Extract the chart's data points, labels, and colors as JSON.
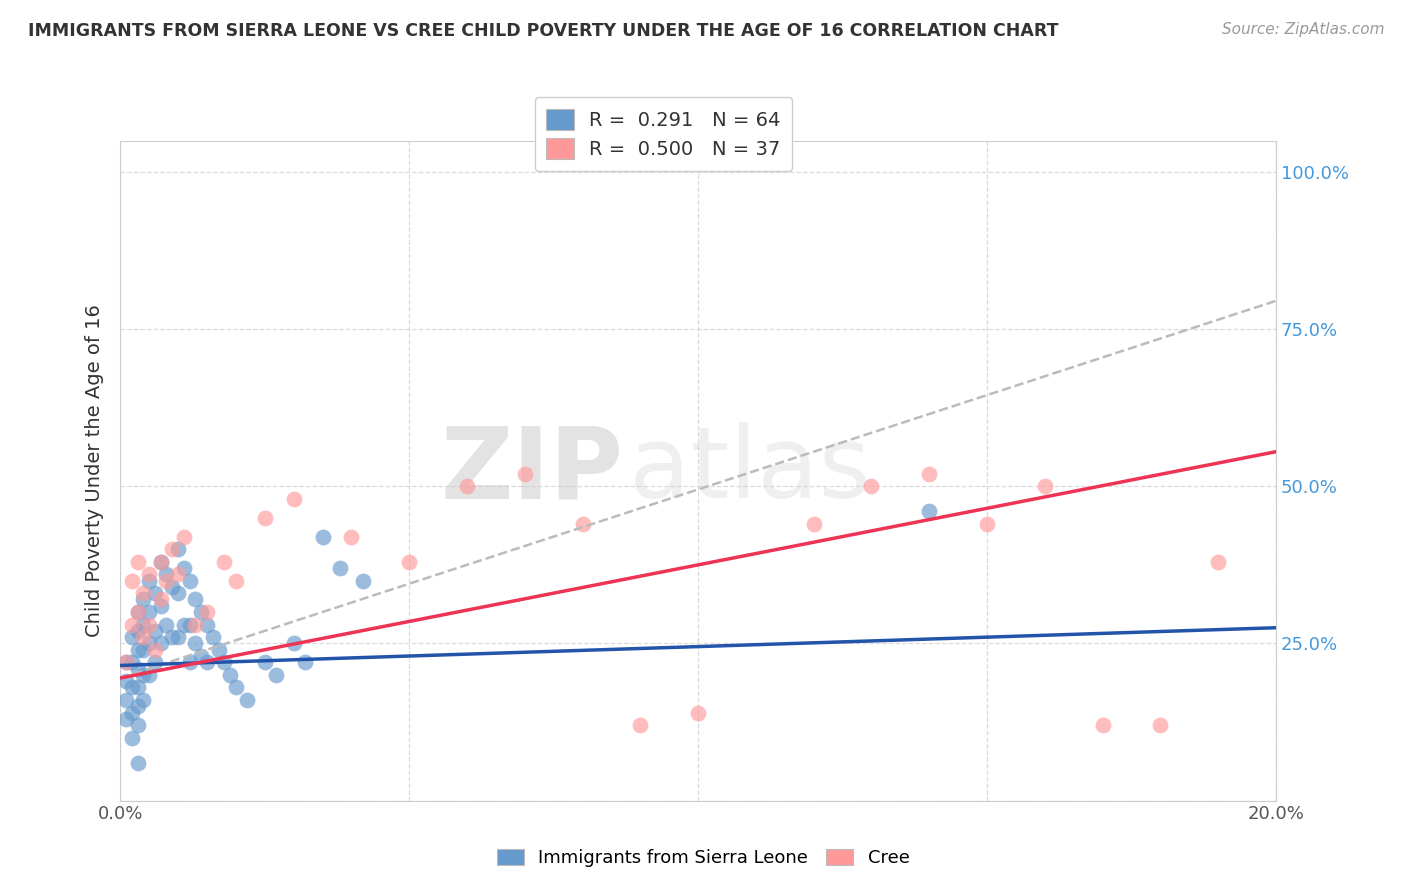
{
  "title": "IMMIGRANTS FROM SIERRA LEONE VS CREE CHILD POVERTY UNDER THE AGE OF 16 CORRELATION CHART",
  "source": "Source: ZipAtlas.com",
  "ylabel": "Child Poverty Under the Age of 16",
  "legend_label_1": "Immigrants from Sierra Leone",
  "legend_label_2": "Cree",
  "R1": 0.291,
  "N1": 64,
  "R2": 0.5,
  "N2": 37,
  "color_blue": "#6699CC",
  "color_pink": "#FF9999",
  "color_blue_line": "#2255AA",
  "color_pink_line": "#EE3355",
  "color_gray_dashed": "#BBBBBB",
  "watermark_zip": "ZIP",
  "watermark_atlas": "atlas",
  "xlim": [
    0.0,
    0.2
  ],
  "ylim": [
    0.0,
    1.05
  ],
  "xticks": [
    0.0,
    0.05,
    0.1,
    0.15,
    0.2
  ],
  "xtick_labels": [
    "0.0%",
    "",
    "",
    "",
    "20.0%"
  ],
  "ytick_positions": [
    0.0,
    0.25,
    0.5,
    0.75,
    1.0
  ],
  "ytick_labels_right": [
    "",
    "25.0%",
    "50.0%",
    "75.0%",
    "100.0%"
  ],
  "blue_line_x": [
    0.0,
    0.2
  ],
  "blue_line_y": [
    0.215,
    0.275
  ],
  "pink_line_x": [
    0.0,
    0.2
  ],
  "pink_line_y": [
    0.195,
    0.555
  ],
  "gray_line_x": [
    0.0,
    0.2
  ],
  "gray_line_y": [
    0.195,
    0.795
  ],
  "blue_dots_x": [
    0.001,
    0.001,
    0.001,
    0.001,
    0.002,
    0.002,
    0.002,
    0.002,
    0.002,
    0.003,
    0.003,
    0.003,
    0.003,
    0.003,
    0.003,
    0.003,
    0.004,
    0.004,
    0.004,
    0.004,
    0.004,
    0.005,
    0.005,
    0.005,
    0.005,
    0.006,
    0.006,
    0.006,
    0.007,
    0.007,
    0.007,
    0.008,
    0.008,
    0.009,
    0.009,
    0.01,
    0.01,
    0.01,
    0.011,
    0.011,
    0.012,
    0.012,
    0.012,
    0.013,
    0.013,
    0.014,
    0.014,
    0.015,
    0.015,
    0.016,
    0.017,
    0.018,
    0.019,
    0.02,
    0.022,
    0.025,
    0.027,
    0.03,
    0.032,
    0.035,
    0.038,
    0.042,
    0.14,
    0.003
  ],
  "blue_dots_y": [
    0.22,
    0.19,
    0.16,
    0.13,
    0.26,
    0.22,
    0.18,
    0.14,
    0.1,
    0.3,
    0.27,
    0.24,
    0.21,
    0.18,
    0.15,
    0.12,
    0.32,
    0.28,
    0.24,
    0.2,
    0.16,
    0.35,
    0.3,
    0.25,
    0.2,
    0.33,
    0.27,
    0.22,
    0.38,
    0.31,
    0.25,
    0.36,
    0.28,
    0.34,
    0.26,
    0.4,
    0.33,
    0.26,
    0.37,
    0.28,
    0.35,
    0.28,
    0.22,
    0.32,
    0.25,
    0.3,
    0.23,
    0.28,
    0.22,
    0.26,
    0.24,
    0.22,
    0.2,
    0.18,
    0.16,
    0.22,
    0.2,
    0.25,
    0.22,
    0.42,
    0.37,
    0.35,
    0.46,
    0.06
  ],
  "pink_dots_x": [
    0.001,
    0.002,
    0.002,
    0.003,
    0.003,
    0.004,
    0.004,
    0.005,
    0.005,
    0.006,
    0.007,
    0.007,
    0.008,
    0.009,
    0.01,
    0.011,
    0.013,
    0.015,
    0.018,
    0.02,
    0.025,
    0.03,
    0.04,
    0.05,
    0.06,
    0.07,
    0.08,
    0.09,
    0.1,
    0.12,
    0.13,
    0.14,
    0.15,
    0.16,
    0.17,
    0.18,
    0.19
  ],
  "pink_dots_y": [
    0.22,
    0.28,
    0.35,
    0.3,
    0.38,
    0.26,
    0.33,
    0.28,
    0.36,
    0.24,
    0.32,
    0.38,
    0.35,
    0.4,
    0.36,
    0.42,
    0.28,
    0.3,
    0.38,
    0.35,
    0.45,
    0.48,
    0.42,
    0.38,
    0.5,
    0.52,
    0.44,
    0.12,
    0.14,
    0.44,
    0.5,
    0.52,
    0.44,
    0.5,
    0.12,
    0.12,
    0.38
  ]
}
